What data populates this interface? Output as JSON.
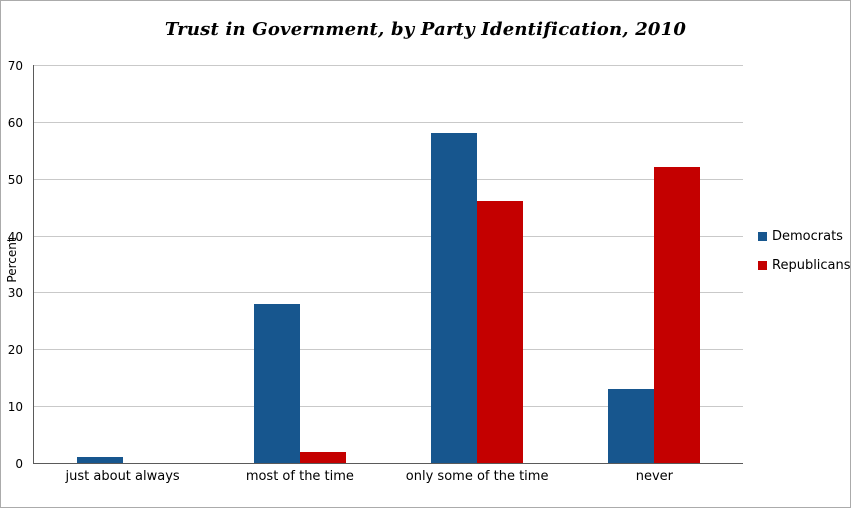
{
  "chart_data": {
    "type": "bar",
    "title": "Trust in Government, by Party Identification, 2010",
    "xlabel": "",
    "ylabel": "Percent",
    "categories": [
      "just about always",
      "most of the time",
      "only some of the time",
      "never"
    ],
    "series": [
      {
        "name": "Democrats",
        "color": "#17568e",
        "values": [
          1,
          28,
          58,
          13
        ]
      },
      {
        "name": "Republicans",
        "color": "#c40000",
        "values": [
          0,
          2,
          46,
          52
        ]
      }
    ],
    "ylim": [
      0,
      70
    ],
    "yticks": [
      0,
      10,
      20,
      30,
      40,
      50,
      60,
      70
    ],
    "grid": "horizontal",
    "legend_position": "right"
  },
  "colors": {
    "background": "#ffffff",
    "border": "#ababab",
    "grid_line": "#c9c9c9",
    "axis_line": "#5a5a5a",
    "text": "#000000"
  }
}
